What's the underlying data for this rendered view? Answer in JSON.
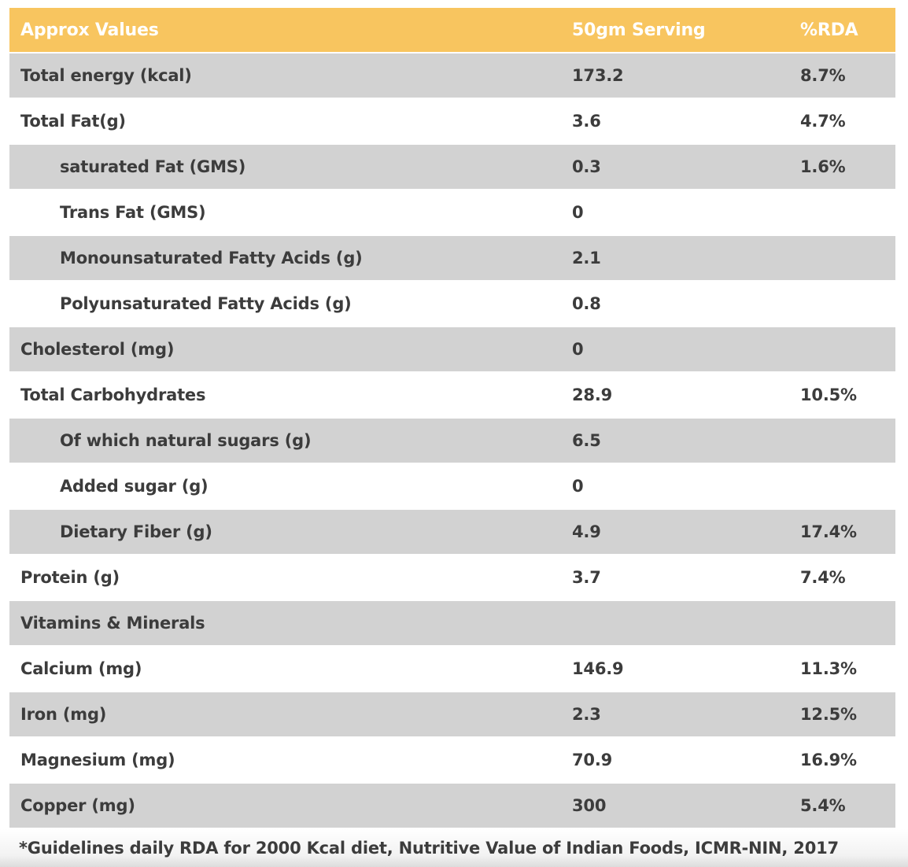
{
  "table": {
    "columns": {
      "label": "Approx Values",
      "serving": "50gm Serving",
      "rda": "%RDA"
    },
    "rows": [
      {
        "label": "Total energy (kcal)",
        "serving": "173.2",
        "rda": "8.7%",
        "indent": false,
        "shade": true
      },
      {
        "label": "Total Fat(g)",
        "serving": "3.6",
        "rda": "4.7%",
        "indent": false,
        "shade": false
      },
      {
        "label": "saturated Fat (GMS)",
        "serving": "0.3",
        "rda": "1.6%",
        "indent": true,
        "shade": true
      },
      {
        "label": "Trans Fat (GMS)",
        "serving": "0",
        "rda": "",
        "indent": true,
        "shade": false
      },
      {
        "label": "Monounsaturated Fatty Acids (g)",
        "serving": "2.1",
        "rda": "",
        "indent": true,
        "shade": true
      },
      {
        "label": "Polyunsaturated Fatty Acids (g)",
        "serving": "0.8",
        "rda": "",
        "indent": true,
        "shade": false
      },
      {
        "label": "Cholesterol (mg)",
        "serving": "0",
        "rda": "",
        "indent": false,
        "shade": true
      },
      {
        "label": "Total Carbohydrates",
        "serving": "28.9",
        "rda": "10.5%",
        "indent": false,
        "shade": false
      },
      {
        "label": "Of which natural sugars (g)",
        "serving": "6.5",
        "rda": "",
        "indent": true,
        "shade": true
      },
      {
        "label": "Added sugar (g)",
        "serving": "0",
        "rda": "",
        "indent": true,
        "shade": false
      },
      {
        "label": "Dietary Fiber (g)",
        "serving": "4.9",
        "rda": "17.4%",
        "indent": true,
        "shade": true
      },
      {
        "label": "Protein (g)",
        "serving": "3.7",
        "rda": "7.4%",
        "indent": false,
        "shade": false
      },
      {
        "label": "Vitamins & Minerals",
        "serving": "",
        "rda": "",
        "indent": false,
        "shade": true
      },
      {
        "label": "Calcium (mg)",
        "serving": "146.9",
        "rda": "11.3%",
        "indent": false,
        "shade": false
      },
      {
        "label": "Iron (mg)",
        "serving": "2.3",
        "rda": "12.5%",
        "indent": false,
        "shade": true
      },
      {
        "label": "Magnesium (mg)",
        "serving": "70.9",
        "rda": "16.9%",
        "indent": false,
        "shade": false
      },
      {
        "label": "Copper (mg)",
        "serving": "300",
        "rda": "5.4%",
        "indent": false,
        "shade": true
      }
    ],
    "footnote": "*Guidelines daily RDA for 2000 Kcal diet, Nutritive Value of Indian Foods, ICMR-NIN, 2017"
  },
  "colors": {
    "header_bg": "#f8c55f",
    "header_text": "#ffffff",
    "row_shade": "#d2d2d2",
    "row_plain": "#ffffff",
    "text": "#3c3c3c"
  }
}
